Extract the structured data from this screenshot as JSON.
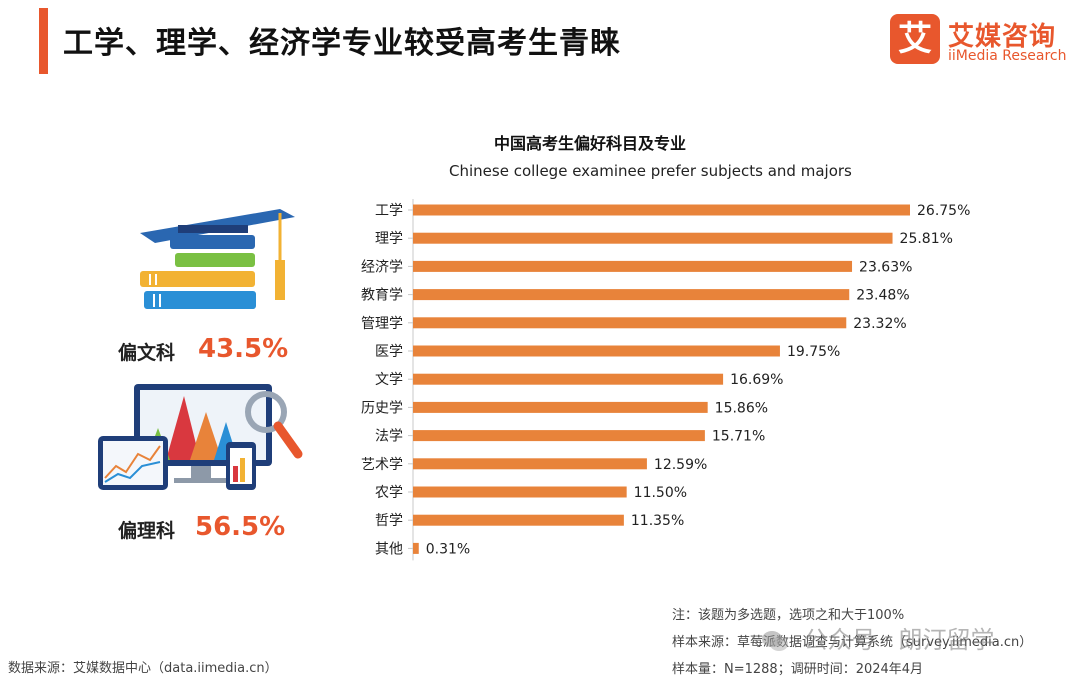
{
  "header": {
    "title": "工学、理学、经济学专业较受高考生青睐",
    "logo_cn": "艾媒咨询",
    "logo_en": "iiMedia Research",
    "logo_mark": "艾"
  },
  "chart_data": {
    "type": "bar",
    "orientation": "horizontal",
    "title": "中国高考生偏好科目及专业",
    "subtitle": "Chinese college examinee prefer subjects and majors",
    "categories": [
      "工学",
      "理学",
      "经济学",
      "教育学",
      "管理学",
      "医学",
      "文学",
      "历史学",
      "法学",
      "艺术学",
      "农学",
      "哲学",
      "其他"
    ],
    "values": [
      26.75,
      25.81,
      23.63,
      23.48,
      23.32,
      19.75,
      16.69,
      15.86,
      15.71,
      12.59,
      11.5,
      11.35,
      0.31
    ],
    "value_labels": [
      "26.75%",
      "25.81%",
      "23.63%",
      "23.48%",
      "23.32%",
      "19.75%",
      "16.69%",
      "15.86%",
      "15.71%",
      "12.59%",
      "11.50%",
      "11.35%",
      "0.31%"
    ],
    "xlim": [
      0,
      26.75
    ],
    "bar_color": "#e8833a",
    "grid": false
  },
  "side_panel": {
    "liberal_arts": {
      "label": "偏文科",
      "value": "43.5%",
      "icon": "books-graduation-cap-icon"
    },
    "science": {
      "label": "偏理科",
      "value": "56.5%",
      "icon": "monitor-charts-icon"
    }
  },
  "notes": {
    "note": "注：该题为多选题，选项之和大于100%",
    "sample_source": "样本来源：草莓派数据调查与计算系统（survey.iimedia.cn）",
    "sample_size": "样本量：N=1288；调研时间：2024年4月"
  },
  "source": "数据来源：艾媒数据中心（data.iimedia.cn）",
  "watermark": "公众号 · 朗汀留学",
  "colors": {
    "accent": "#e8572d",
    "bar": "#e8833a"
  }
}
